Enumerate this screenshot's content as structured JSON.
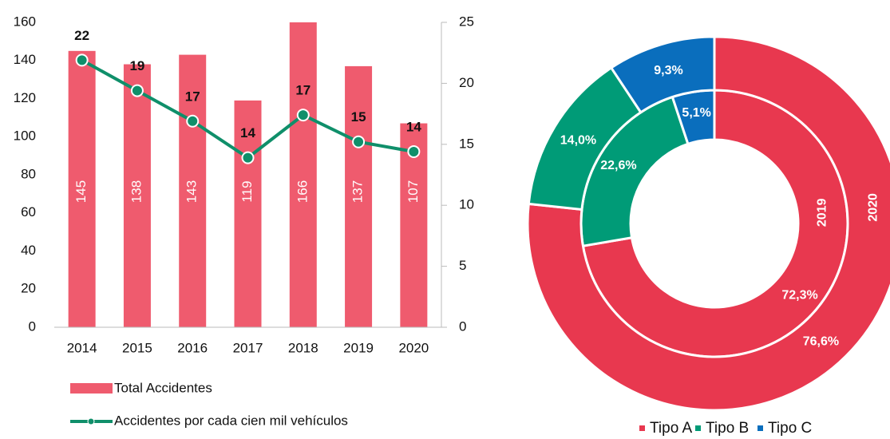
{
  "chart_data": [
    {
      "type": "bar",
      "categories": [
        "2014",
        "2015",
        "2016",
        "2017",
        "2018",
        "2019",
        "2020"
      ],
      "series": [
        {
          "name": "Total Accidentes",
          "type": "bar",
          "color": "#ef5b6e",
          "values": [
            145,
            138,
            143,
            119,
            166,
            137,
            107
          ]
        },
        {
          "name": "Accidentes por cada cien mil vehículos",
          "type": "line",
          "axis": "y2",
          "color": "#0f8f6a",
          "values": [
            21.9,
            19.4,
            16.9,
            13.9,
            17.4,
            15.2,
            14.4
          ],
          "value_labels": [
            "22",
            "19",
            "17",
            "14",
            "17",
            "15",
            "14"
          ]
        }
      ],
      "ylim": [
        0,
        160
      ],
      "yticks": [
        0,
        20,
        40,
        60,
        80,
        100,
        120,
        140,
        160
      ],
      "y2lim": [
        0,
        25
      ],
      "y2ticks": [
        0,
        5,
        10,
        15,
        20,
        25
      ]
    },
    {
      "type": "pie",
      "categories": [
        "Tipo A",
        "Tipo B",
        "Tipo C"
      ],
      "colors": [
        "#e8384f",
        "#009b77",
        "#0a6ebd"
      ],
      "series": [
        {
          "name": "2019",
          "values": [
            72.3,
            22.6,
            5.1
          ],
          "value_labels": [
            "72,3%",
            "22,6%",
            "5,1%"
          ]
        },
        {
          "name": "2020",
          "values": [
            76.6,
            14.0,
            9.3
          ],
          "value_labels": [
            "76,6%",
            "14,0%",
            "9,3%"
          ]
        }
      ]
    }
  ]
}
